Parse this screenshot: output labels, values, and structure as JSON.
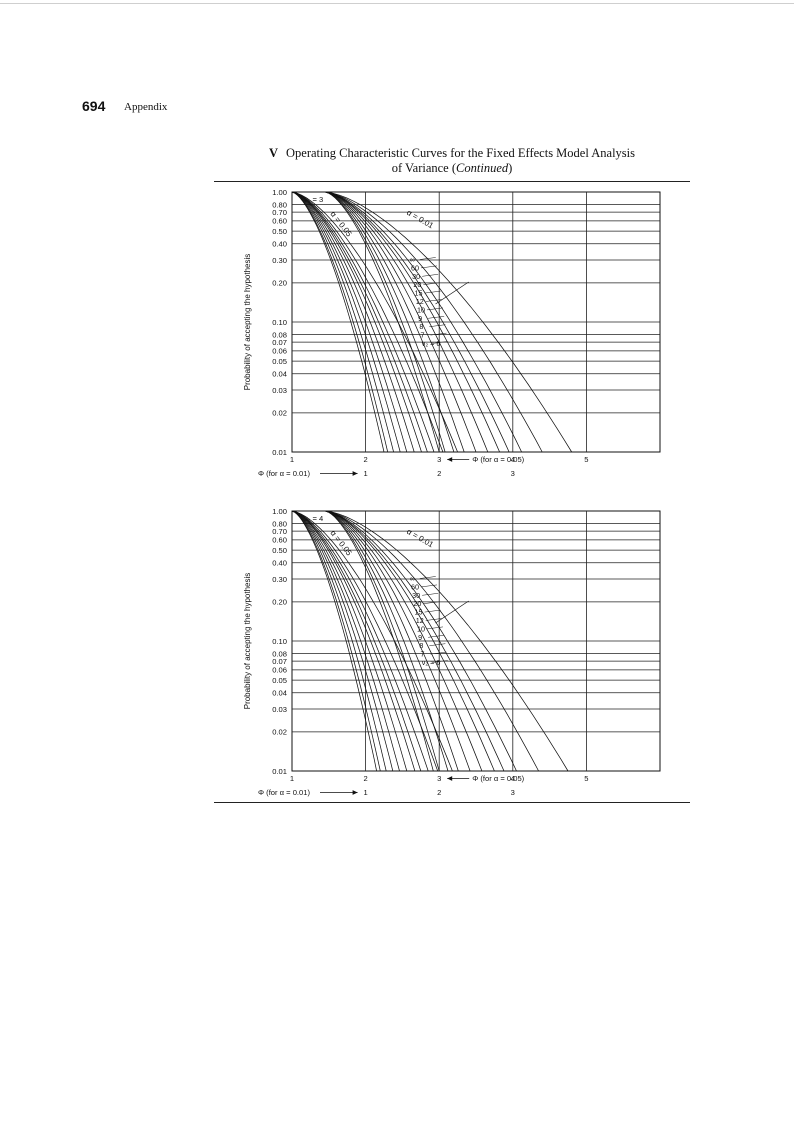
{
  "page": {
    "number": "694",
    "section": "Appendix",
    "caption_roman": "V",
    "caption_line1": "Operating Characteristic Curves for the Fixed Effects Model Analysis",
    "caption_line2_plain": "of Variance (",
    "caption_line2_italic": "Continued",
    "caption_line2_end": ")"
  },
  "chart_data": [
    {
      "type": "line",
      "panel_label": "ν₁ = 3",
      "ylabel": "Probability of accepting the hypothesis",
      "y_scale": "log",
      "ylim": [
        0.01,
        1.0
      ],
      "y_ticks": [
        "1.00",
        "0.80",
        "0.70",
        "0.60",
        "0.50",
        "0.40",
        "0.30",
        "0.20",
        "0.10",
        "0.08",
        "0.07",
        "0.06",
        "0.05",
        "0.04",
        "0.03",
        "0.02",
        "0.01"
      ],
      "x_axis_alpha_005": {
        "label": "Φ (for α = 0.05)",
        "ticks": [
          "1",
          "2",
          "3",
          "4",
          "5"
        ]
      },
      "x_axis_alpha_001": {
        "label": "Φ (for α = 0.01)",
        "ticks": [
          "1",
          "2",
          "3"
        ]
      },
      "alpha_labels": [
        "α = 0.05",
        "α = 0.01"
      ],
      "nu2_labels": [
        "∞",
        "60",
        "30",
        "20",
        "15",
        "12",
        "10",
        "9",
        "8",
        "7",
        "ν₂ = 6"
      ],
      "series": [
        {
          "alpha": 0.05,
          "nu2": "∞",
          "phi_at_p001": 2.25
        },
        {
          "alpha": 0.05,
          "nu2": "60",
          "phi_at_p001": 2.3
        },
        {
          "alpha": 0.05,
          "nu2": "30",
          "phi_at_p001": 2.38
        },
        {
          "alpha": 0.05,
          "nu2": "20",
          "phi_at_p001": 2.47
        },
        {
          "alpha": 0.05,
          "nu2": "15",
          "phi_at_p001": 2.56
        },
        {
          "alpha": 0.05,
          "nu2": "12",
          "phi_at_p001": 2.66
        },
        {
          "alpha": 0.05,
          "nu2": "10",
          "phi_at_p001": 2.76
        },
        {
          "alpha": 0.05,
          "nu2": "9",
          "phi_at_p001": 2.84
        },
        {
          "alpha": 0.05,
          "nu2": "8",
          "phi_at_p001": 2.93
        },
        {
          "alpha": 0.05,
          "nu2": "7",
          "phi_at_p001": 3.05
        },
        {
          "alpha": 0.05,
          "nu2": "6",
          "phi_at_p001": 3.25
        },
        {
          "alpha": 0.01,
          "nu2": "∞",
          "phi_at_p001": 3.0
        },
        {
          "alpha": 0.01,
          "nu2": "60",
          "phi_at_p001": 3.08
        },
        {
          "alpha": 0.01,
          "nu2": "30",
          "phi_at_p001": 3.2
        },
        {
          "alpha": 0.01,
          "nu2": "20",
          "phi_at_p001": 3.34
        },
        {
          "alpha": 0.01,
          "nu2": "15",
          "phi_at_p001": 3.5
        },
        {
          "alpha": 0.01,
          "nu2": "12",
          "phi_at_p001": 3.66
        },
        {
          "alpha": 0.01,
          "nu2": "10",
          "phi_at_p001": 3.82
        },
        {
          "alpha": 0.01,
          "nu2": "9",
          "phi_at_p001": 3.95
        },
        {
          "alpha": 0.01,
          "nu2": "8",
          "phi_at_p001": 4.12
        },
        {
          "alpha": 0.01,
          "nu2": "7",
          "phi_at_p001": 4.4
        },
        {
          "alpha": 0.01,
          "nu2": "6",
          "phi_at_p001": 4.8
        }
      ]
    },
    {
      "type": "line",
      "panel_label": "ν₁ = 4",
      "ylabel": "Probability of accepting the hypothesis",
      "y_scale": "log",
      "ylim": [
        0.01,
        1.0
      ],
      "y_ticks": [
        "1.00",
        "0.80",
        "0.70",
        "0.60",
        "0.50",
        "0.40",
        "0.30",
        "0.20",
        "0.10",
        "0.08",
        "0.07",
        "0.06",
        "0.05",
        "0.04",
        "0.03",
        "0.02",
        "0.01"
      ],
      "x_axis_alpha_005": {
        "label": "Φ (for α = 0.05)",
        "ticks": [
          "1",
          "2",
          "3",
          "4",
          "5"
        ]
      },
      "x_axis_alpha_001": {
        "label": "Φ (for α = 0.01)",
        "ticks": [
          "1",
          "2",
          "3"
        ]
      },
      "alpha_labels": [
        "α = 0.05",
        "α = 0.01"
      ],
      "nu2_labels": [
        "∞",
        "60",
        "30",
        "20",
        "15",
        "12",
        "10",
        "9",
        "8",
        "7",
        "ν₂ = 6"
      ],
      "series": [
        {
          "alpha": 0.05,
          "nu2": "∞",
          "phi_at_p001": 2.15
        },
        {
          "alpha": 0.05,
          "nu2": "60",
          "phi_at_p001": 2.2
        },
        {
          "alpha": 0.05,
          "nu2": "30",
          "phi_at_p001": 2.28
        },
        {
          "alpha": 0.05,
          "nu2": "20",
          "phi_at_p001": 2.37
        },
        {
          "alpha": 0.05,
          "nu2": "15",
          "phi_at_p001": 2.46
        },
        {
          "alpha": 0.05,
          "nu2": "12",
          "phi_at_p001": 2.56
        },
        {
          "alpha": 0.05,
          "nu2": "10",
          "phi_at_p001": 2.67
        },
        {
          "alpha": 0.05,
          "nu2": "9",
          "phi_at_p001": 2.75
        },
        {
          "alpha": 0.05,
          "nu2": "8",
          "phi_at_p001": 2.85
        },
        {
          "alpha": 0.05,
          "nu2": "7",
          "phi_at_p001": 2.98
        },
        {
          "alpha": 0.05,
          "nu2": "6",
          "phi_at_p001": 3.18
        },
        {
          "alpha": 0.01,
          "nu2": "∞",
          "phi_at_p001": 2.92
        },
        {
          "alpha": 0.01,
          "nu2": "60",
          "phi_at_p001": 3.0
        },
        {
          "alpha": 0.01,
          "nu2": "30",
          "phi_at_p001": 3.12
        },
        {
          "alpha": 0.01,
          "nu2": "20",
          "phi_at_p001": 3.26
        },
        {
          "alpha": 0.01,
          "nu2": "15",
          "phi_at_p001": 3.42
        },
        {
          "alpha": 0.01,
          "nu2": "12",
          "phi_at_p001": 3.58
        },
        {
          "alpha": 0.01,
          "nu2": "10",
          "phi_at_p001": 3.75
        },
        {
          "alpha": 0.01,
          "nu2": "9",
          "phi_at_p001": 3.88
        },
        {
          "alpha": 0.01,
          "nu2": "8",
          "phi_at_p001": 4.05
        },
        {
          "alpha": 0.01,
          "nu2": "7",
          "phi_at_p001": 4.35
        },
        {
          "alpha": 0.01,
          "nu2": "6",
          "phi_at_p001": 4.75
        }
      ]
    }
  ]
}
